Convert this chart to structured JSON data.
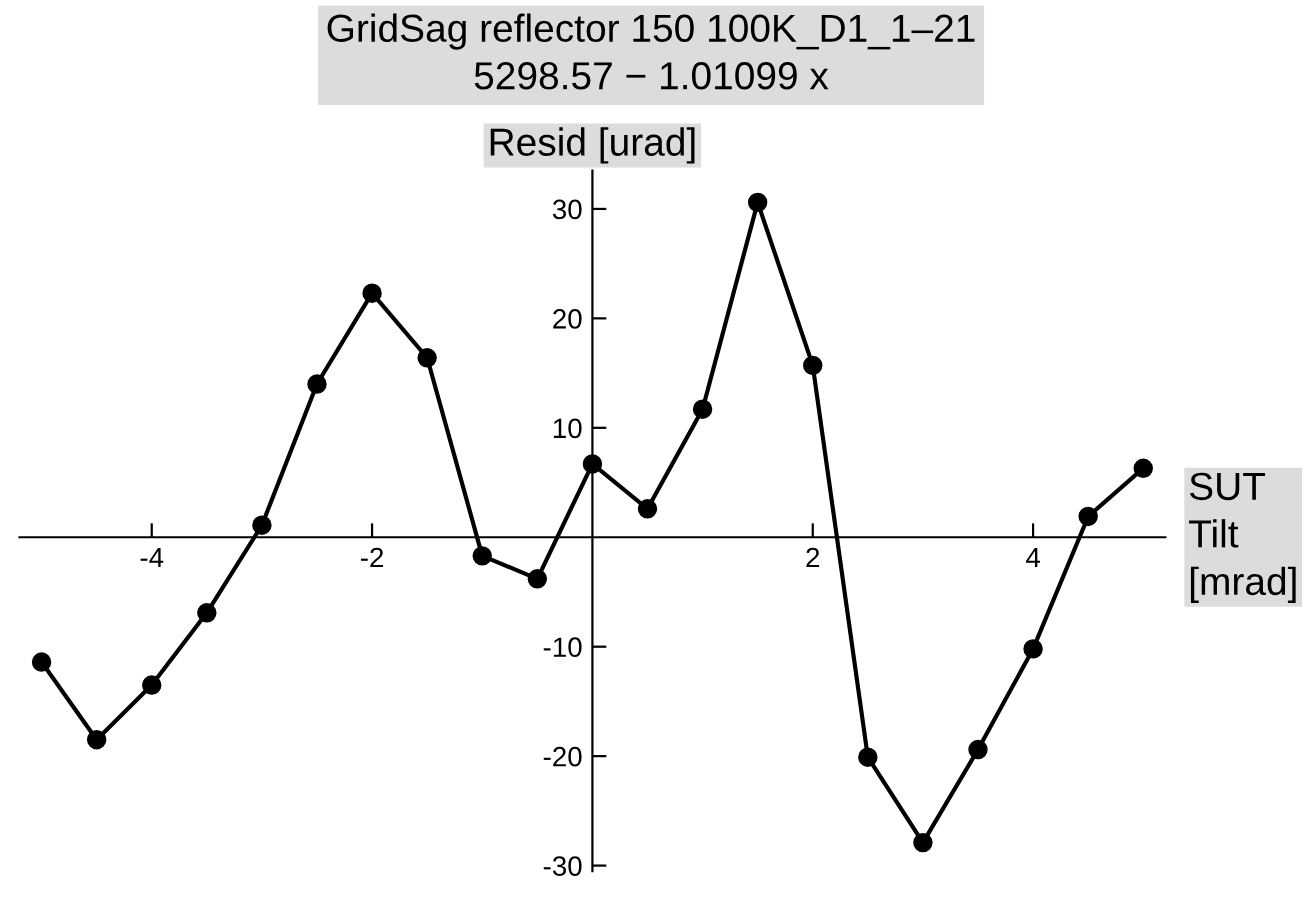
{
  "chart_data": {
    "type": "line",
    "title": "GridSag reflector 150 100K_D1_1–21",
    "subtitle": "5298.57 − 1.01099 x",
    "xlabel": "SUT\nTilt\n[mrad]",
    "ylabel": "Resid [urad]",
    "x": [
      -5,
      -4.5,
      -4,
      -3.5,
      -3,
      -2.5,
      -2,
      -1.5,
      -1,
      -0.5,
      0,
      0.5,
      1,
      1.5,
      2,
      2.5,
      3,
      3.5,
      4,
      4.5,
      5
    ],
    "series": [
      {
        "color": "#000000",
        "values": [
          -11.4,
          -18.5,
          -13.5,
          -6.9,
          1.1,
          14.0,
          22.3,
          16.4,
          -1.7,
          -3.8,
          6.7,
          2.6,
          11.7,
          30.6,
          15.7,
          -20.1,
          -27.9,
          -19.4,
          -10.2,
          1.9,
          6.3
        ]
      }
    ],
    "xlim": [
      -5.2,
      5.2
    ],
    "ylim": [
      -30.5,
      33.5
    ],
    "xticks": [
      -4,
      -2,
      2,
      4
    ],
    "yticks": [
      -30,
      -20,
      -10,
      10,
      20,
      30
    ],
    "marker": "circle",
    "line_style": "solid",
    "grid": false,
    "legend": false
  }
}
